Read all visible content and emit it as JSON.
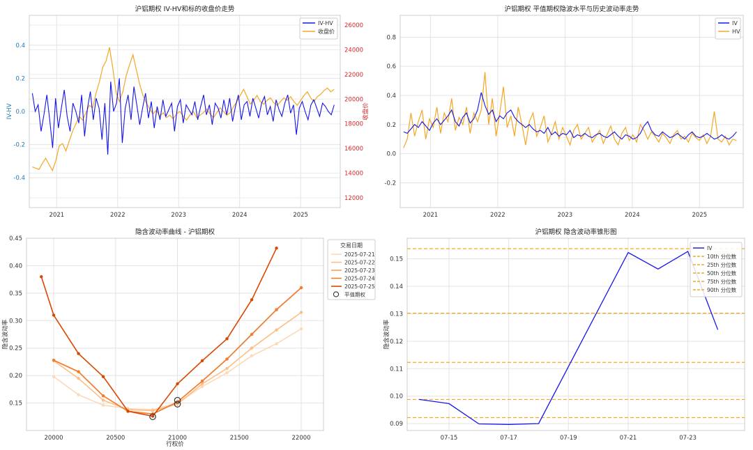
{
  "chart_data": [
    {
      "type": "line",
      "title": "沪铝期权 IV-HV和标的收盘价走势",
      "ylabel": "IV-HV",
      "y2label": "收盘价",
      "xlim": [
        2020.55,
        2025.65
      ],
      "ylim": [
        -0.58,
        0.58
      ],
      "y2lim": [
        11200,
        26800
      ],
      "xticks": [
        {
          "v": 2021,
          "label": "2021"
        },
        {
          "v": 2022,
          "label": "2022"
        },
        {
          "v": 2023,
          "label": "2023"
        },
        {
          "v": 2024,
          "label": "2024"
        },
        {
          "v": 2025,
          "label": "2025"
        }
      ],
      "yticks": [
        -0.4,
        -0.2,
        0.0,
        0.2,
        0.4
      ],
      "y2ticks": [
        12000,
        14000,
        16000,
        18000,
        20000,
        22000,
        24000,
        26000
      ],
      "colors": {
        "IV-HV": "#1515e8",
        "收盘价": "#f5a623",
        "y2axis": "#d62728",
        "yaxis": "#1f77b4"
      },
      "legend": {
        "position": "top-right",
        "entries": [
          "IV-HV",
          "收盘价"
        ]
      },
      "grid": true,
      "series": [
        {
          "name": "IV-HV",
          "axis": "left",
          "x_start": 2020.6,
          "x_end": 2025.55,
          "values": [
            0.11,
            0.0,
            0.04,
            -0.12,
            -0.02,
            0.1,
            -0.05,
            -0.22,
            0.08,
            -0.1,
            0.02,
            0.13,
            -0.03,
            -0.12,
            0.05,
            0.0,
            -0.07,
            0.1,
            -0.15,
            0.02,
            0.12,
            -0.05,
            0.08,
            0.02,
            -0.17,
            0.05,
            -0.26,
            0.18,
            0.0,
            0.05,
            0.2,
            -0.19,
            0.02,
            0.1,
            -0.05,
            0.15,
            0.04,
            -0.08,
            0.02,
            0.11,
            -0.04,
            0.06,
            -0.1,
            0.03,
            -0.05,
            0.07,
            -0.03,
            0.01,
            0.05,
            -0.12,
            0.03,
            0.07,
            -0.07,
            0.04,
            0.01,
            -0.02,
            0.06,
            -0.05,
            0.03,
            0.1,
            -0.02,
            0.04,
            -0.08,
            0.05,
            0.02,
            -0.04,
            0.07,
            -0.02,
            0.08,
            -0.06,
            0.03,
            0.1,
            -0.05,
            0.04,
            0.06,
            -0.03,
            0.08,
            0.02,
            -0.04,
            0.05,
            0.09,
            -0.02,
            0.03,
            -0.06,
            0.07,
            0.01,
            -0.03,
            0.05,
            0.1,
            -0.01,
            0.04,
            -0.14,
            0.02,
            0.06,
            0.0,
            -0.05,
            0.04,
            0.07,
            0.02,
            -0.03,
            0.05,
            0.03,
            0.0,
            -0.02,
            0.04
          ]
        },
        {
          "name": "收盘价",
          "axis": "right",
          "x_start": 2020.6,
          "x_end": 2025.55,
          "values": [
            14500,
            14400,
            14300,
            14800,
            15200,
            14700,
            14200,
            15000,
            16200,
            16400,
            15800,
            16600,
            17400,
            18000,
            18600,
            18300,
            18900,
            19500,
            19300,
            20500,
            21400,
            22600,
            23100,
            24200,
            22500,
            20500,
            19800,
            20600,
            21900,
            22800,
            23600,
            22400,
            21200,
            20300,
            19700,
            19200,
            18800,
            19100,
            18600,
            18900,
            18500,
            18700,
            18400,
            18800,
            19000,
            18600,
            18300,
            18700,
            19000,
            18500,
            18700,
            18900,
            19200,
            18800,
            18500,
            18900,
            19300,
            19000,
            18700,
            18900,
            19400,
            19800,
            20300,
            20800,
            20200,
            19600,
            19900,
            20300,
            19800,
            19600,
            19900,
            20100,
            19700,
            19500,
            19800,
            20100,
            19900,
            20200,
            19800,
            19500,
            19900,
            20300,
            20600,
            20100,
            19800,
            20200,
            20400,
            20700,
            20900,
            20600,
            20800
          ]
        }
      ]
    },
    {
      "type": "line",
      "title": "沪铝期权 平值期权隐波水平与历史波动率走势",
      "xlim": [
        2020.55,
        2025.65
      ],
      "ylim": [
        -0.37,
        0.95
      ],
      "xticks": [
        {
          "v": 2021,
          "label": "2021"
        },
        {
          "v": 2022,
          "label": "2022"
        },
        {
          "v": 2023,
          "label": "2023"
        },
        {
          "v": 2024,
          "label": "2024"
        },
        {
          "v": 2025,
          "label": "2025"
        }
      ],
      "yticks": [
        -0.2,
        0.0,
        0.2,
        0.4,
        0.6,
        0.8
      ],
      "colors": {
        "IV": "#1515e8",
        "HV": "#f5a623"
      },
      "legend": {
        "position": "top-right",
        "entries": [
          "IV",
          "HV"
        ]
      },
      "grid": true,
      "series": [
        {
          "name": "IV",
          "x_start": 2020.6,
          "x_end": 2025.55,
          "values": [
            0.15,
            0.14,
            0.17,
            0.2,
            0.18,
            0.22,
            0.19,
            0.16,
            0.21,
            0.24,
            0.2,
            0.23,
            0.26,
            0.3,
            0.22,
            0.19,
            0.25,
            0.28,
            0.21,
            0.24,
            0.3,
            0.42,
            0.33,
            0.27,
            0.3,
            0.22,
            0.26,
            0.24,
            0.28,
            0.3,
            0.25,
            0.22,
            0.2,
            0.18,
            0.2,
            0.17,
            0.15,
            0.16,
            0.14,
            0.18,
            0.13,
            0.15,
            0.12,
            0.14,
            0.13,
            0.16,
            0.11,
            0.13,
            0.12,
            0.14,
            0.12,
            0.11,
            0.13,
            0.14,
            0.12,
            0.11,
            0.13,
            0.15,
            0.12,
            0.1,
            0.13,
            0.12,
            0.1,
            0.11,
            0.14,
            0.19,
            0.22,
            0.16,
            0.13,
            0.12,
            0.15,
            0.13,
            0.11,
            0.12,
            0.14,
            0.12,
            0.1,
            0.13,
            0.15,
            0.12,
            0.11,
            0.12,
            0.14,
            0.12,
            0.1,
            0.11,
            0.13,
            0.11,
            0.1,
            0.12,
            0.15
          ]
        },
        {
          "name": "HV",
          "x_start": 2020.6,
          "x_end": 2025.55,
          "values": [
            0.04,
            0.1,
            0.28,
            0.12,
            0.22,
            0.3,
            0.1,
            0.24,
            0.18,
            0.32,
            0.14,
            0.28,
            0.22,
            0.38,
            0.16,
            0.25,
            0.2,
            0.32,
            0.14,
            0.28,
            0.22,
            0.3,
            0.56,
            0.2,
            0.38,
            0.12,
            0.28,
            0.46,
            0.18,
            0.26,
            0.12,
            0.32,
            0.2,
            0.06,
            0.22,
            0.28,
            0.12,
            0.18,
            0.26,
            0.08,
            0.14,
            0.22,
            0.1,
            0.18,
            0.12,
            0.06,
            0.16,
            0.2,
            0.1,
            0.14,
            0.18,
            0.08,
            0.12,
            0.16,
            0.07,
            0.13,
            0.19,
            0.1,
            0.06,
            0.14,
            0.18,
            0.09,
            0.13,
            0.08,
            0.2,
            0.16,
            0.1,
            0.15,
            0.12,
            0.08,
            0.14,
            0.11,
            0.07,
            0.13,
            0.16,
            0.1,
            0.12,
            0.08,
            0.14,
            0.11,
            0.09,
            0.13,
            0.07,
            0.12,
            0.29,
            0.1,
            0.08,
            0.12,
            0.06,
            0.1,
            0.09
          ]
        }
      ]
    },
    {
      "type": "line",
      "title": "隐含波动率曲线 - 沪铝期权",
      "xlabel": "行权价",
      "ylabel": "隐含波动率",
      "xlim": [
        19780,
        22180
      ],
      "ylim": [
        0.1,
        0.45
      ],
      "xticks": [
        {
          "v": 20000,
          "label": "20000"
        },
        {
          "v": 20500,
          "label": "20500"
        },
        {
          "v": 21000,
          "label": "21000"
        },
        {
          "v": 21500,
          "label": "21500"
        },
        {
          "v": 22000,
          "label": "22000"
        }
      ],
      "yticks": [
        0.15,
        0.2,
        0.25,
        0.3,
        0.35,
        0.4,
        0.45
      ],
      "legend": {
        "position": "outside-right",
        "title": "交易日期",
        "atm_label": "平值期权"
      },
      "grid": true,
      "series": [
        {
          "name": "2025-07-21",
          "color": "#fdd9b5",
          "points": [
            [
              20000,
              0.198
            ],
            [
              20200,
              0.165
            ],
            [
              20400,
              0.146
            ],
            [
              20600,
              0.14
            ],
            [
              20800,
              0.138
            ],
            [
              21000,
              0.15
            ],
            [
              21200,
              0.18
            ],
            [
              21400,
              0.205
            ],
            [
              21600,
              0.236
            ],
            [
              21800,
              0.258
            ],
            [
              22000,
              0.285
            ]
          ]
        },
        {
          "name": "2025-07-22",
          "color": "#fdbe85",
          "points": [
            [
              20000,
              0.227
            ],
            [
              20200,
              0.195
            ],
            [
              20400,
              0.155
            ],
            [
              20600,
              0.138
            ],
            [
              20800,
              0.136
            ],
            [
              21000,
              0.148
            ],
            [
              21200,
              0.185
            ],
            [
              21400,
              0.213
            ],
            [
              21600,
              0.25
            ],
            [
              21800,
              0.283
            ],
            [
              22000,
              0.315
            ]
          ]
        },
        {
          "name": "2025-07-23",
          "color": "#fd9e5a",
          "points": [
            [
              20000,
              0.228
            ],
            [
              20200,
              0.207
            ],
            [
              20400,
              0.163
            ],
            [
              20600,
              0.135
            ],
            [
              20800,
              0.13
            ],
            [
              21000,
              0.152
            ],
            [
              21200,
              0.19
            ],
            [
              21400,
              0.23
            ],
            [
              21600,
              0.275
            ],
            [
              21800,
              0.32
            ],
            [
              22000,
              0.36
            ]
          ]
        },
        {
          "name": "2025-07-24",
          "color": "#f07d32",
          "points": [
            [
              20000,
              0.228
            ],
            [
              20200,
              0.207
            ],
            [
              20400,
              0.163
            ],
            [
              20600,
              0.135
            ],
            [
              20800,
              0.13
            ],
            [
              21000,
              0.152
            ],
            [
              21200,
              0.19
            ],
            [
              21400,
              0.23
            ],
            [
              21600,
              0.275
            ],
            [
              21800,
              0.32
            ],
            [
              22000,
              0.36
            ]
          ]
        },
        {
          "name": "2025-07-25",
          "color": "#d94801",
          "points": [
            [
              19900,
              0.38
            ],
            [
              20000,
              0.31
            ],
            [
              20200,
              0.24
            ],
            [
              20400,
              0.198
            ],
            [
              20600,
              0.135
            ],
            [
              20800,
              0.126
            ],
            [
              21000,
              0.185
            ],
            [
              21200,
              0.227
            ],
            [
              21400,
              0.267
            ],
            [
              21600,
              0.338
            ],
            [
              21800,
              0.432
            ]
          ]
        }
      ],
      "atm_points": [
        [
          20800,
          0.125
        ],
        [
          21000,
          0.155
        ],
        [
          21000,
          0.148
        ]
      ]
    },
    {
      "type": "line",
      "title": "沪铝期权 隐含波动率锥形图",
      "ylabel": "隐含波动率",
      "xlim": [
        13.6,
        24.9
      ],
      "ylim": [
        0.0875,
        0.1575
      ],
      "xticks": [
        {
          "v": 15,
          "label": "07-15"
        },
        {
          "v": 17,
          "label": "07-17"
        },
        {
          "v": 19,
          "label": "07-19"
        },
        {
          "v": 21,
          "label": "07-21"
        },
        {
          "v": 23,
          "label": "07-23"
        }
      ],
      "yticks": [
        0.09,
        0.1,
        0.11,
        0.12,
        0.13,
        0.14,
        0.15
      ],
      "legend": {
        "position": "top-right",
        "entries": [
          "IV",
          "10th 分位数",
          "25th 分位数",
          "50th 分位数",
          "75th 分位数",
          "90th 分位数"
        ]
      },
      "grid": true,
      "series": [
        {
          "name": "IV",
          "color": "#1515e8",
          "points": [
            [
              14,
              0.0988
            ],
            [
              15,
              0.0973
            ],
            [
              16,
              0.0899
            ],
            [
              17,
              0.0897
            ],
            [
              18,
              0.09
            ],
            [
              21,
              0.1523
            ],
            [
              22,
              0.1463
            ],
            [
              23,
              0.1527
            ],
            [
              24,
              0.1242
            ]
          ]
        }
      ],
      "percentiles": [
        {
          "name": "10th 分位数",
          "value": 0.0922,
          "color": "#f5a623"
        },
        {
          "name": "25th 分位数",
          "value": 0.0988,
          "color": "#f5a623"
        },
        {
          "name": "50th 分位数",
          "value": 0.1123,
          "color": "#f5a623"
        },
        {
          "name": "75th 分位数",
          "value": 0.1302,
          "color": "#f5a623"
        },
        {
          "name": "90th 分位数",
          "value": 0.1537,
          "color": "#f5a623"
        }
      ]
    }
  ]
}
